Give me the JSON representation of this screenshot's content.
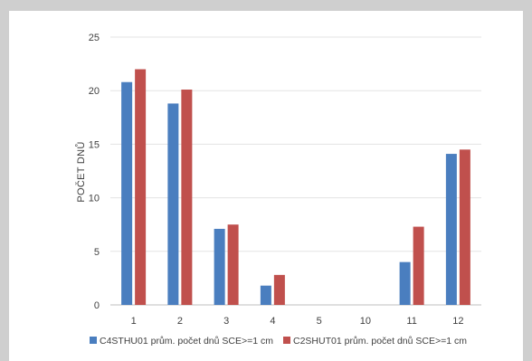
{
  "chart_data": {
    "type": "bar",
    "title": "",
    "xlabel": "",
    "ylabel": "POČET DNŮ",
    "ylim": [
      0,
      25
    ],
    "yticks": [
      "0",
      "5",
      "10",
      "15",
      "20",
      "25"
    ],
    "grid": true,
    "legend_position": "bottom",
    "categories": [
      "1",
      "2",
      "3",
      "4",
      "5",
      "10",
      "11",
      "12"
    ],
    "series": [
      {
        "name": "C4STHU01 prům. počet dnů SCE>=1 cm",
        "color": "#4a7ebf",
        "values": [
          20.8,
          18.8,
          7.1,
          1.8,
          0,
          0,
          4.0,
          14.1
        ]
      },
      {
        "name": "C2SHUT01 prům. počet dnů SCE>=1 cm",
        "color": "#c0504d",
        "values": [
          22.0,
          20.1,
          7.5,
          2.8,
          0,
          0,
          7.3,
          14.5
        ]
      }
    ]
  }
}
